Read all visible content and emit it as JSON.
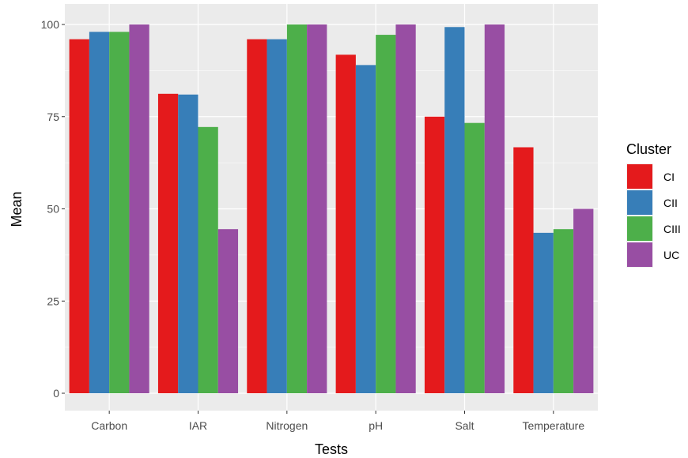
{
  "chart_data": {
    "type": "bar",
    "xlabel": "Tests",
    "ylabel": "Mean",
    "categories": [
      "Carbon",
      "IAR",
      "Nitrogen",
      "pH",
      "Salt",
      "Temperature"
    ],
    "ylim": [
      0,
      104
    ],
    "yticks": [
      0,
      25,
      50,
      75,
      100
    ],
    "grid": true,
    "legend": {
      "title": "Cluster",
      "placement": "right"
    },
    "series": [
      {
        "name": "CI",
        "color": "#E41A1C",
        "values": [
          96,
          81.2,
          96,
          91.8,
          75,
          66.7
        ]
      },
      {
        "name": "CII",
        "color": "#377EB8",
        "values": [
          98,
          81,
          96,
          89,
          99.3,
          43.5
        ]
      },
      {
        "name": "CIII",
        "color": "#4DAF4A",
        "values": [
          98,
          72.2,
          100,
          97.2,
          73.3,
          44.5
        ]
      },
      {
        "name": "UC",
        "color": "#984EA3",
        "values": [
          100,
          44.5,
          100,
          100,
          100,
          50
        ]
      }
    ]
  }
}
